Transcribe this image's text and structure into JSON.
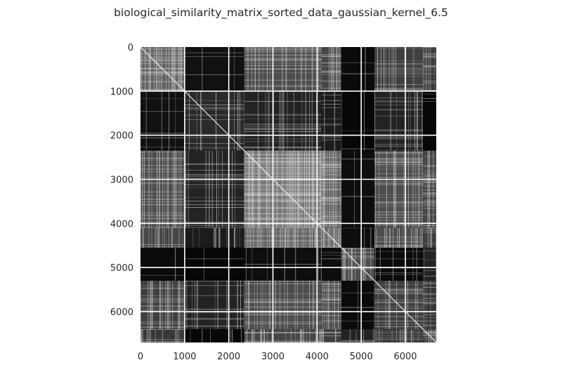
{
  "chart_data": {
    "type": "heatmap",
    "title": "biological_similarity_matrix_sorted_data_gaussian_kernel_6.5",
    "xlabel": "",
    "ylabel": "",
    "xlim": [
      0,
      6700
    ],
    "ylim": [
      6700,
      0
    ],
    "x_ticks": [
      0,
      1000,
      2000,
      3000,
      4000,
      5000,
      6000
    ],
    "y_ticks": [
      0,
      1000,
      2000,
      3000,
      4000,
      5000,
      6000
    ],
    "colormap": "gray",
    "diagonal": 1.0,
    "cluster_bounds": [
      0,
      1000,
      2350,
      4100,
      4550,
      5300,
      6400,
      6700
    ],
    "block_density": [
      [
        0.7,
        0.12,
        0.55,
        0.5,
        0.08,
        0.45,
        0.4
      ],
      [
        0.12,
        0.3,
        0.25,
        0.2,
        0.05,
        0.25,
        0.05
      ],
      [
        0.55,
        0.25,
        0.85,
        0.7,
        0.1,
        0.55,
        0.5
      ],
      [
        0.5,
        0.2,
        0.7,
        0.75,
        0.1,
        0.55,
        0.45
      ],
      [
        0.08,
        0.05,
        0.1,
        0.1,
        0.55,
        0.08,
        0.25
      ],
      [
        0.45,
        0.25,
        0.55,
        0.55,
        0.08,
        0.45,
        0.4
      ],
      [
        0.4,
        0.05,
        0.5,
        0.45,
        0.25,
        0.4,
        0.45
      ]
    ],
    "white_lines": [
      1000,
      2000,
      3000,
      4000,
      5000,
      6000
    ],
    "grid": false
  }
}
